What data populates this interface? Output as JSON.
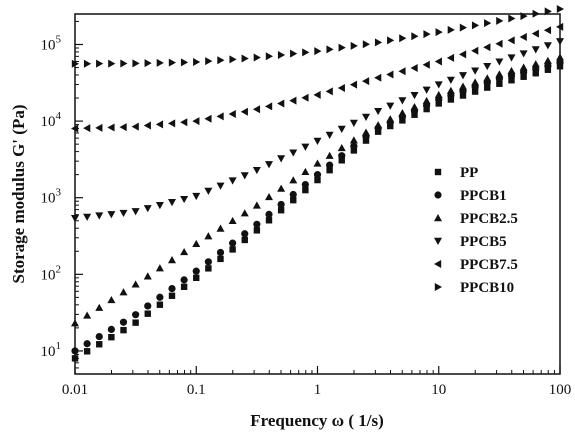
{
  "chart_data": {
    "type": "scatter",
    "xscale": "log",
    "yscale": "log",
    "xlabel": "Frequency ω ( 1/s)",
    "ylabel": "Storage modulus G' (Pa)",
    "xlim": [
      0.01,
      100
    ],
    "ylim": [
      5,
      250000
    ],
    "xticks": [
      {
        "value": 0.01,
        "label": "0.01"
      },
      {
        "value": 0.1,
        "label": "0.1"
      },
      {
        "value": 1,
        "label": "1"
      },
      {
        "value": 10,
        "label": "10"
      },
      {
        "value": 100,
        "label": "100"
      }
    ],
    "yticks": [
      {
        "value": 10,
        "base": "10",
        "exp": "1"
      },
      {
        "value": 100,
        "base": "10",
        "exp": "2"
      },
      {
        "value": 1000,
        "base": "10",
        "exp": "3"
      },
      {
        "value": 10000,
        "base": "10",
        "exp": "4"
      },
      {
        "value": 100000,
        "base": "10",
        "exp": "5"
      }
    ],
    "grid": false,
    "legend_position": "right",
    "series": [
      {
        "name": "PP",
        "marker": "square",
        "anchors": [
          [
            0.01,
            8
          ],
          [
            0.03,
            22
          ],
          [
            0.1,
            90
          ],
          [
            0.3,
            350
          ],
          [
            1,
            1700
          ],
          [
            3,
            7000
          ],
          [
            10,
            17000
          ],
          [
            30,
            30000
          ],
          [
            100,
            52000
          ]
        ]
      },
      {
        "name": "PPCB1",
        "marker": "circle",
        "anchors": [
          [
            0.01,
            10
          ],
          [
            0.03,
            28
          ],
          [
            0.1,
            110
          ],
          [
            0.3,
            420
          ],
          [
            1,
            2000
          ],
          [
            3,
            7800
          ],
          [
            10,
            19000
          ],
          [
            30,
            35000
          ],
          [
            100,
            58000
          ]
        ]
      },
      {
        "name": "PPCB2.5",
        "marker": "triangle-up",
        "anchors": [
          [
            0.01,
            23
          ],
          [
            0.03,
            70
          ],
          [
            0.1,
            250
          ],
          [
            0.3,
            750
          ],
          [
            1,
            2800
          ],
          [
            3,
            8500
          ],
          [
            10,
            22000
          ],
          [
            30,
            40000
          ],
          [
            100,
            68000
          ]
        ]
      },
      {
        "name": "PPCB5",
        "marker": "triangle-down",
        "anchors": [
          [
            0.01,
            540
          ],
          [
            0.03,
            650
          ],
          [
            0.1,
            1050
          ],
          [
            0.3,
            2200
          ],
          [
            1,
            5500
          ],
          [
            3,
            13000
          ],
          [
            10,
            30000
          ],
          [
            30,
            58000
          ],
          [
            100,
            110000
          ]
        ]
      },
      {
        "name": "PPCB7.5",
        "marker": "triangle-left",
        "anchors": [
          [
            0.01,
            8000
          ],
          [
            0.03,
            8400
          ],
          [
            0.1,
            10000
          ],
          [
            0.3,
            14000
          ],
          [
            1,
            22000
          ],
          [
            3,
            36000
          ],
          [
            10,
            60000
          ],
          [
            30,
            100000
          ],
          [
            100,
            170000
          ]
        ]
      },
      {
        "name": "PPCB10",
        "marker": "triangle-right",
        "anchors": [
          [
            0.01,
            56000
          ],
          [
            0.03,
            56500
          ],
          [
            0.1,
            59000
          ],
          [
            0.3,
            67000
          ],
          [
            1,
            82000
          ],
          [
            3,
            105000
          ],
          [
            10,
            145000
          ],
          [
            30,
            200000
          ],
          [
            100,
            290000
          ]
        ]
      }
    ]
  }
}
